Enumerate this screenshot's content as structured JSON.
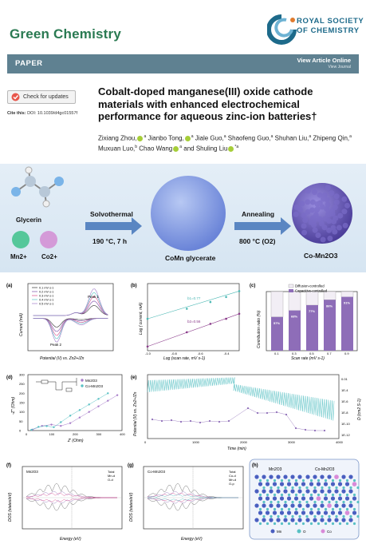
{
  "header": {
    "journal": "Green Chemistry",
    "society_line1": "ROYAL SOCIETY",
    "society_line2": "OF CHEMISTRY"
  },
  "bar": {
    "label": "PAPER",
    "view_online": "View Article Online",
    "view_journal": "View Journal"
  },
  "meta": {
    "check_updates": "Check for updates",
    "cite_label": "Cite this:",
    "cite_value": "DOI: 10.1039/d4gc01557f"
  },
  "article": {
    "title": "Cobalt-doped manganese(III) oxide cathode materials with enhanced electrochemical performance for aqueous zinc-ion batteries†",
    "authors": [
      "Zixiang Zhou,",
      "Jianbo Tong,",
      "Jiale Guo,",
      "Shaofeng Guo,",
      "Shuhan Liu,",
      "Zhipeng Qin,",
      "Muxuan Luo,",
      "Chao Wang",
      "and Shuling Liu"
    ]
  },
  "toc": {
    "glycerin": "Glycerin",
    "mn": "Mn2+",
    "co": "Co2+",
    "step1_top": "Solvothermal",
    "step1_bottom": "190 °C, 7 h",
    "intermediate": "CoMn glycerate",
    "step2_top": "Annealing",
    "step2_bottom": "800 °C (O2)",
    "product": "Co-Mn2O3",
    "colors": {
      "sphere": "#7f98e6",
      "product": "#6a5bb5",
      "mn": "#55c79a",
      "co": "#d49ad8"
    }
  },
  "panels": {
    "a": {
      "label": "(a)",
      "xlabel": "Potential (V) vs. Zn2+/Zn",
      "ylabel": "Current (mA)",
      "legend": [
        "0.1 mV s-1",
        "0.2 mV s-1",
        "0.3 mV s-1",
        "0.4 mV s-1",
        "0.5 mV s-1"
      ],
      "peak1": "Peak 1",
      "peak2": "Peak 2"
    },
    "b": {
      "label": "(b)",
      "xlabel": "Log (scan rate, mV s-1)",
      "ylabel": "Log ( current, mA)",
      "b1": "b1=0.77",
      "b2": "b2=0.56"
    },
    "c": {
      "label": "(c)",
      "xlabel": "Scan rate (mV s-1)",
      "ylabel": "Contribution ratio (%)",
      "legend": [
        "Diffusion-controlled",
        "Capacitive-controlled"
      ]
    },
    "d": {
      "label": "(d)",
      "xlabel": "Z' (Ohm)",
      "ylabel": "-Z'' (Ohm)",
      "legend": [
        "Mn2O3",
        "Co-Mn2O3"
      ]
    },
    "e": {
      "label": "(e)",
      "xlabel": "Time (min)",
      "ylabel": "Potential (V) vs. Zn2+/Zn",
      "ylabel2": "D (cm2 S-1)"
    },
    "f": {
      "label": "(f)",
      "title": "Mn2O3",
      "xlabel": "Energy (eV)",
      "ylabel": "DOS (states/eV)",
      "legend": [
        "Total",
        "Mn-d",
        "O-d"
      ]
    },
    "g": {
      "label": "(g)",
      "title": "Co-Mn2O3",
      "xlabel": "Energy (eV)",
      "ylabel": "DOS (states/eV)",
      "legend": [
        "Total",
        "Co-d",
        "Mn-d",
        "O-p"
      ]
    },
    "h": {
      "label": "(h)",
      "left": "Mn2O3",
      "right": "Co-Mn2O3",
      "legend": [
        "Mn",
        "O",
        "Co"
      ]
    }
  },
  "chart_data": [
    {
      "type": "line",
      "title": "",
      "xlabel": "Potential (V) vs. Zn2+/Zn",
      "ylabel": "Current (mA)",
      "xlim": [
        1.0,
        1.8
      ],
      "ylim": [
        -0.6,
        0.6
      ],
      "series": [
        {
          "name": "0.1 mV s-1",
          "peak1": 0.18,
          "peak2": -0.16
        },
        {
          "name": "0.2 mV s-1",
          "peak1": 0.26,
          "peak2": -0.24
        },
        {
          "name": "0.3 mV s-1",
          "peak1": 0.34,
          "peak2": -0.31
        },
        {
          "name": "0.4 mV s-1",
          "peak1": 0.41,
          "peak2": -0.37
        },
        {
          "name": "0.5 mV s-1",
          "peak1": 0.48,
          "peak2": -0.43
        }
      ]
    },
    {
      "type": "scatter",
      "xlabel": "Log (scan rate, mV s-1)",
      "ylabel": "Log ( current, mA)",
      "xlim": [
        -1.0,
        -0.3
      ],
      "ylim": [
        -1.0,
        -0.2
      ],
      "series": [
        {
          "name": "b1=0.77",
          "x": [
            -1.0,
            -0.7,
            -0.52,
            -0.4,
            -0.3
          ],
          "y": [
            -0.62,
            -0.5,
            -0.42,
            -0.36,
            -0.29
          ]
        },
        {
          "name": "b2=0.56",
          "x": [
            -1.0,
            -0.7,
            -0.52,
            -0.4,
            -0.3
          ],
          "y": [
            -0.95,
            -0.78,
            -0.68,
            -0.62,
            -0.56
          ]
        }
      ]
    },
    {
      "type": "bar",
      "xlabel": "Scan rate (mV s-1)",
      "ylabel": "Contribution ratio (%)",
      "categories": [
        "0.1",
        "0.3",
        "0.5",
        "0.7",
        "0.9"
      ],
      "ylim": [
        0,
        100
      ],
      "series": [
        {
          "name": "Capacitive-controlled",
          "values": [
            57,
            68,
            77,
            86,
            91
          ]
        },
        {
          "name": "Diffusion-controlled",
          "values": [
            43,
            32,
            23,
            14,
            9
          ]
        }
      ],
      "data_labels": [
        "57%",
        "68%",
        "77%",
        "86%",
        "91%"
      ]
    },
    {
      "type": "scatter",
      "xlabel": "Z' (Ohm)",
      "ylabel": "-Z'' (Ohm)",
      "xlim": [
        0,
        400
      ],
      "ylim": [
        0,
        300
      ],
      "xticks": [
        0,
        100,
        200,
        300,
        400
      ],
      "yticks": [
        0,
        50,
        100,
        150,
        200,
        250,
        300
      ],
      "series": [
        {
          "name": "Mn2O3",
          "x": [
            20,
            60,
            100,
            140,
            180,
            220,
            260,
            300,
            340,
            380
          ],
          "y": [
            5,
            25,
            32,
            25,
            40,
            70,
            100,
            130,
            160,
            190
          ]
        },
        {
          "name": "Co-Mn2O3",
          "x": [
            15,
            45,
            80,
            110,
            140,
            180,
            220,
            260,
            300,
            340
          ],
          "y": [
            4,
            20,
            24,
            18,
            45,
            80,
            110,
            140,
            170,
            200
          ]
        }
      ]
    },
    {
      "type": "line",
      "xlabel": "Time (min)",
      "ylabel": "Potential (V) vs. Zn2+/Zn",
      "xlim": [
        0,
        4000
      ],
      "xticks": [
        0,
        1000,
        2000,
        3000,
        4000
      ],
      "y2_ticks": [
        "0.01",
        "1E-4",
        "1E-6",
        "1E-8",
        "1E-10",
        "1E-12"
      ]
    }
  ]
}
